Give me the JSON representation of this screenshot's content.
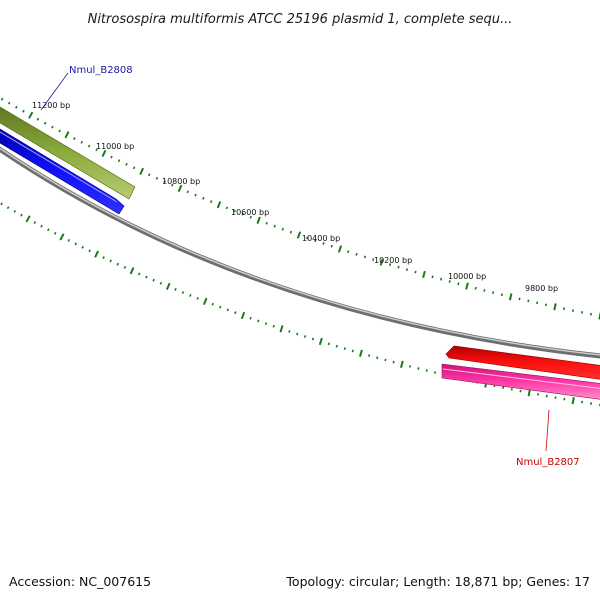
{
  "title": "Nitrosospira multiformis ATCC 25196 plasmid 1, complete sequ...",
  "ticks": [
    "11200 bp",
    "11000 bp",
    "10800 bp",
    "10600 bp",
    "10400 bp",
    "10200 bp",
    "10000 bp",
    "9800 bp"
  ],
  "genes": [
    {
      "name": "Nmul_B2808",
      "color": "#1a1aa6"
    },
    {
      "name": "Nmul_B2807",
      "color": "#cc0000"
    }
  ],
  "footer": {
    "accession": "Accession: NC_007615",
    "summary": "Topology: circular; Length: 18,871 bp; Genes: 17"
  },
  "colors": {
    "backbone": "#8a8a8a",
    "tick": "#1a7a1a",
    "olive_feature": "#6e8c2a",
    "blue_feature": "#0000ee",
    "red_feature": "#ff0000",
    "pink_feature": "#ff2aa8"
  }
}
